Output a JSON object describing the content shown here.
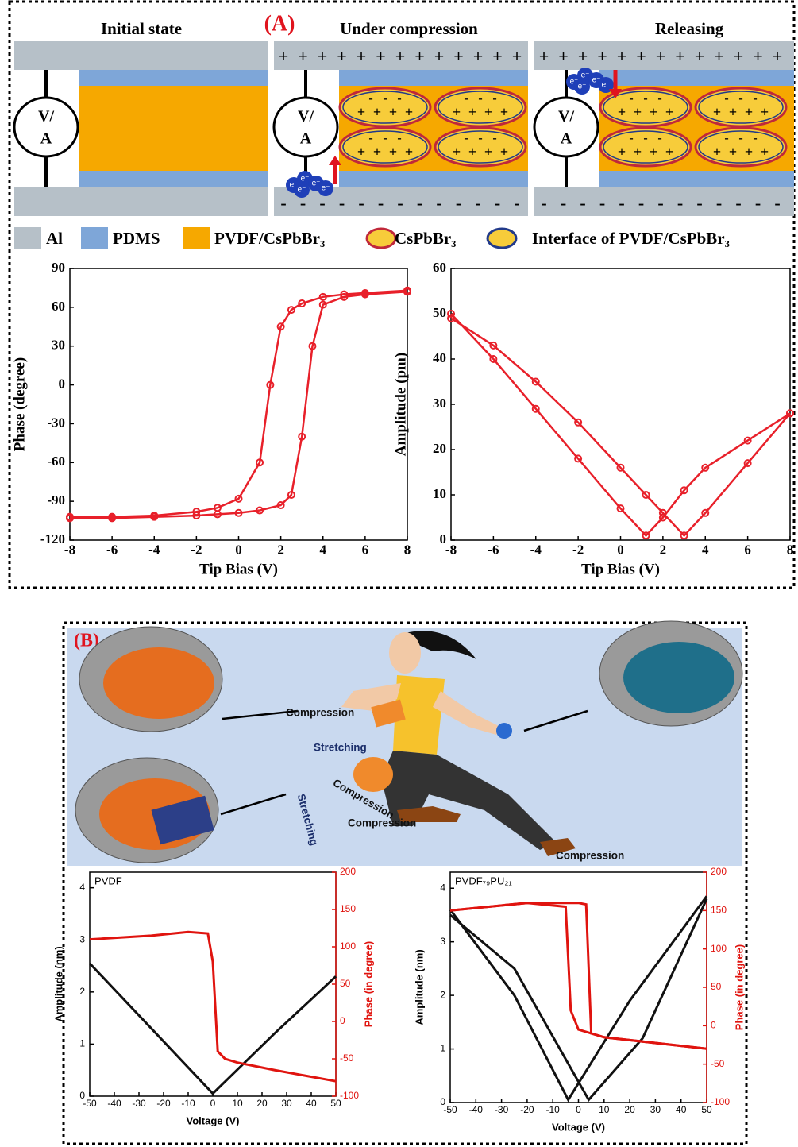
{
  "panel_a": {
    "label": "(A)",
    "states": [
      "Initial state",
      "Under compression",
      "Releasing"
    ],
    "meter_top": "V/",
    "meter_bottom": "A",
    "plus": "+",
    "minus": "-",
    "electron": "e⁻",
    "legend": [
      "Al",
      "PDMS",
      "PVDF/CsPbBr₃",
      "CsPbBr₃",
      "Interface of PVDF/CsPbBr₃"
    ]
  },
  "panel_b": {
    "label": "(B)",
    "annotations": [
      "Compression",
      "Stretching",
      "Stretching",
      "Compression",
      "Compression",
      "Compression"
    ]
  },
  "chart_data": [
    {
      "type": "line",
      "marker": "circle",
      "x_label": "Tip Bias (V)",
      "y_label": "Phase (degree)",
      "xlim": [
        -8,
        8
      ],
      "xticks": [
        -8,
        -6,
        -4,
        -2,
        0,
        2,
        4,
        6,
        8
      ],
      "ylim": [
        -120,
        90
      ],
      "yticks": [
        -120,
        -90,
        -60,
        -30,
        0,
        30,
        60,
        90
      ],
      "series": [
        {
          "color": "#e8202a",
          "x": [
            -8,
            -6,
            -4,
            -2,
            -1,
            0,
            1,
            2,
            2.5,
            3,
            3.5,
            4,
            5,
            6,
            8
          ],
          "values": [
            -103,
            -103,
            -102,
            -101,
            -100,
            -99,
            -97,
            -93,
            -85,
            -40,
            30,
            62,
            68,
            70,
            72
          ]
        },
        {
          "color": "#e8202a",
          "x": [
            -8,
            -6,
            -4,
            -2,
            -1,
            0,
            1,
            1.5,
            2,
            2.5,
            3,
            4,
            5,
            6,
            8
          ],
          "values": [
            -102,
            -102,
            -101,
            -98,
            -95,
            -88,
            -60,
            0,
            45,
            58,
            63,
            68,
            70,
            71,
            73
          ]
        }
      ]
    },
    {
      "type": "line",
      "marker": "circle",
      "x_label": "Tip Bias (V)",
      "y_label": "Amplitude (pm)",
      "xlim": [
        -8,
        8
      ],
      "xticks": [
        -8,
        -6,
        -4,
        -2,
        0,
        2,
        4,
        6,
        8
      ],
      "ylim": [
        0,
        60
      ],
      "yticks": [
        0,
        10,
        20,
        30,
        40,
        50,
        60
      ],
      "series": [
        {
          "color": "#e8202a",
          "x": [
            -8,
            -6,
            -4,
            -2,
            0,
            1.2,
            2,
            3,
            4,
            6,
            8
          ],
          "values": [
            50,
            40,
            29,
            18,
            7,
            1,
            5,
            11,
            16,
            22,
            28
          ]
        },
        {
          "color": "#e8202a",
          "x": [
            -8,
            -6,
            -4,
            -2,
            0,
            1.2,
            2,
            3,
            4,
            6,
            8
          ],
          "values": [
            49,
            43,
            35,
            26,
            16,
            10,
            6,
            1,
            6,
            17,
            28
          ]
        }
      ]
    },
    {
      "type": "line",
      "label": "PVDF",
      "x_label": "Voltage (V)",
      "y_label": "Amplitude (nm)",
      "y2_label": "Phase (in degree)",
      "xlim": [
        -50,
        50
      ],
      "xticks": [
        -50,
        -40,
        -30,
        -20,
        -10,
        0,
        10,
        20,
        30,
        40,
        50
      ],
      "ylim": [
        0,
        4.3
      ],
      "yticks": [
        0,
        1,
        2,
        3,
        4
      ],
      "y2lim": [
        -100,
        200
      ],
      "y2ticks": [
        -100,
        -50,
        0,
        50,
        100,
        150,
        200
      ],
      "series": [
        {
          "color": "#111111",
          "x": [
            -50,
            -25,
            0,
            25,
            50
          ],
          "values": [
            2.55,
            1.3,
            0.05,
            1.2,
            2.3
          ]
        },
        {
          "color": "#e0140f",
          "axis": "y2",
          "x": [
            -50,
            -25,
            -10,
            -2,
            0,
            2,
            5,
            10,
            25,
            50
          ],
          "values": [
            110,
            115,
            120,
            118,
            80,
            -40,
            -50,
            -55,
            -65,
            -80
          ]
        }
      ]
    },
    {
      "type": "line",
      "label": "PVDF₇₉PU₂₁",
      "x_label": "Voltage (V)",
      "y_label": "Amplitude (nm)",
      "y2_label": "Phase (in degree)",
      "xlim": [
        -50,
        50
      ],
      "xticks": [
        -50,
        -40,
        -30,
        -20,
        -10,
        0,
        10,
        20,
        30,
        40,
        50
      ],
      "ylim": [
        0,
        4.3
      ],
      "yticks": [
        0,
        1,
        2,
        3,
        4
      ],
      "y2lim": [
        -100,
        200
      ],
      "y2ticks": [
        -100,
        -50,
        0,
        50,
        100,
        150,
        200
      ],
      "series": [
        {
          "color": "#111111",
          "x": [
            -50,
            -25,
            -4,
            20,
            50
          ],
          "values": [
            3.6,
            2.0,
            0.05,
            1.9,
            3.85
          ]
        },
        {
          "color": "#111111",
          "x": [
            -50,
            -25,
            4,
            25,
            50
          ],
          "values": [
            3.5,
            2.5,
            0.05,
            1.2,
            3.8
          ]
        },
        {
          "color": "#e0140f",
          "axis": "y2",
          "x": [
            -50,
            -20,
            0,
            3,
            5,
            10,
            50
          ],
          "values": [
            150,
            160,
            160,
            158,
            -10,
            -15,
            -30
          ]
        },
        {
          "color": "#e0140f",
          "axis": "y2",
          "x": [
            -50,
            -20,
            -5,
            -3,
            0,
            10,
            50
          ],
          "values": [
            150,
            160,
            155,
            20,
            -5,
            -15,
            -30
          ]
        }
      ]
    }
  ]
}
